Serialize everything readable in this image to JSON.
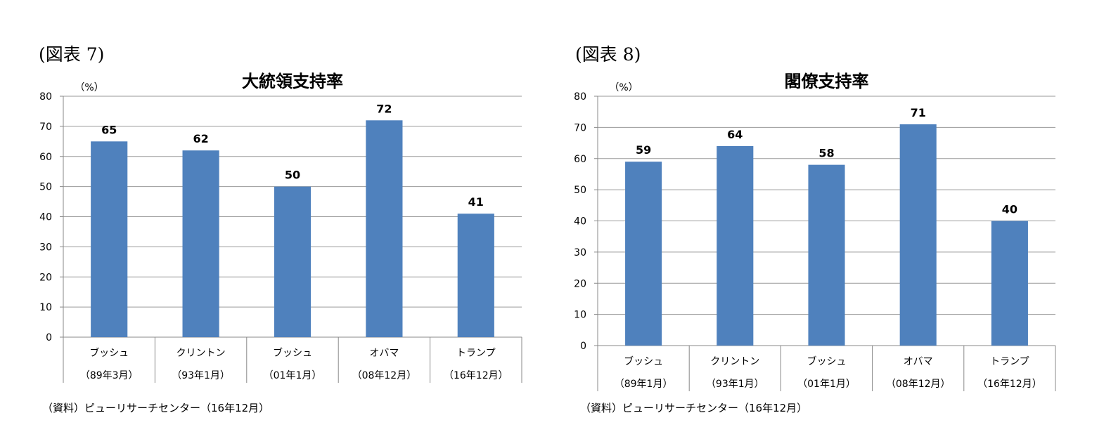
{
  "charts": [
    {
      "figure_label": "(図表 7)",
      "source": "（資料）ピューリサーチセンター（16年12月）",
      "chart_data": {
        "type": "bar",
        "title": "大統領支持率",
        "ylabel": "（%）",
        "xlabel": "",
        "ylim": [
          0,
          80
        ],
        "yticks": [
          0,
          10,
          20,
          30,
          40,
          50,
          60,
          70,
          80
        ],
        "grid": true,
        "categories": [
          "ブッシュ",
          "クリントン",
          "ブッシュ",
          "オバマ",
          "トランプ"
        ],
        "category_dates": [
          "（89年3月）",
          "（93年1月）",
          "（01年1月）",
          "（08年12月）",
          "（16年12月）"
        ],
        "values": [
          65,
          62,
          50,
          72,
          41
        ],
        "bar_color": "#4f81bd"
      }
    },
    {
      "figure_label": "(図表 8)",
      "source": "（資料）ピューリサーチセンター（16年12月）",
      "chart_data": {
        "type": "bar",
        "title": "閣僚支持率",
        "ylabel": "（%）",
        "xlabel": "",
        "ylim": [
          0,
          80
        ],
        "yticks": [
          0,
          10,
          20,
          30,
          40,
          50,
          60,
          70,
          80
        ],
        "grid": true,
        "categories": [
          "ブッシュ",
          "クリントン",
          "ブッシュ",
          "オバマ",
          "トランプ"
        ],
        "category_dates": [
          "（89年1月）",
          "（93年1月）",
          "（01年1月）",
          "（08年12月）",
          "（16年12月）"
        ],
        "values": [
          59,
          64,
          58,
          71,
          40
        ],
        "bar_color": "#4f81bd"
      }
    }
  ]
}
